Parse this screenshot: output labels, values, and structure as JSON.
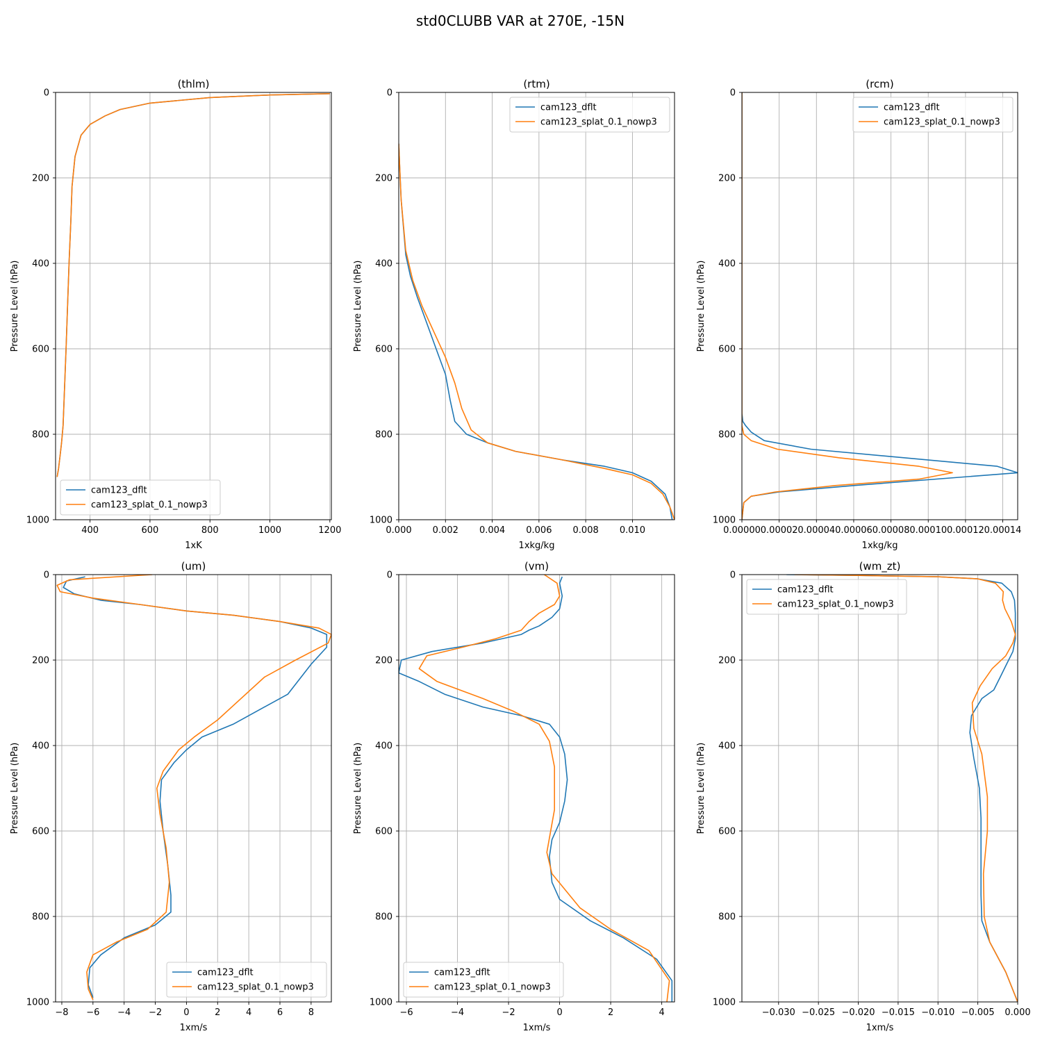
{
  "figure": {
    "title": "std0CLUBB VAR at 270E, -15N",
    "colors": {
      "cam123_dflt": "#1f77b4",
      "cam123_splat_0.1_nowp3": "#ff7f0e"
    }
  },
  "chart_data": [
    {
      "type": "line",
      "title": "(thlm)",
      "xlabel": "1xK",
      "ylabel": "Pressure Level (hPa)",
      "xlim": [
        285,
        1205
      ],
      "ylim": [
        1000,
        0
      ],
      "y_inverted": true,
      "xticks": [
        400,
        600,
        800,
        1000,
        1200
      ],
      "xtick_labels": [
        "400",
        "600",
        "800",
        "1000",
        "1200"
      ],
      "yticks": [
        0,
        200,
        400,
        600,
        800,
        1000
      ],
      "grid": true,
      "legend": "lower left",
      "series": [
        {
          "name": "cam123_dflt",
          "x": [
            1200,
            1000,
            800,
            600,
            500,
            450,
            400,
            370,
            350,
            340,
            336,
            330,
            320,
            310,
            305,
            300,
            295,
            290
          ],
          "y": [
            3,
            6,
            12,
            25,
            40,
            55,
            75,
            100,
            150,
            220,
            300,
            400,
            600,
            780,
            820,
            850,
            880,
            900
          ]
        },
        {
          "name": "cam123_splat_0.1_nowp3",
          "x": [
            1200,
            1000,
            800,
            600,
            500,
            450,
            400,
            370,
            350,
            340,
            336,
            330,
            320,
            310,
            305,
            300,
            295,
            290
          ],
          "y": [
            3,
            6,
            12,
            25,
            40,
            55,
            75,
            100,
            150,
            220,
            300,
            400,
            600,
            780,
            820,
            850,
            880,
            900
          ]
        }
      ]
    },
    {
      "type": "line",
      "title": "(rtm)",
      "xlabel": "1xkg/kg",
      "ylabel": "Pressure Level (hPa)",
      "xlim": [
        0,
        0.0118
      ],
      "ylim": [
        1000,
        0
      ],
      "y_inverted": true,
      "xticks": [
        0,
        0.002,
        0.004,
        0.006,
        0.008,
        0.01
      ],
      "xtick_labels": [
        "0.000",
        "0.002",
        "0.004",
        "0.006",
        "0.008",
        "0.010"
      ],
      "yticks": [
        0,
        200,
        400,
        600,
        800,
        1000
      ],
      "grid": true,
      "legend": "upper right",
      "series": [
        {
          "name": "cam123_dflt",
          "x": [
            0,
            0.0001,
            0.0003,
            0.0005,
            0.0008,
            0.0012,
            0.0016,
            0.002,
            0.0022,
            0.0024,
            0.0029,
            0.0038,
            0.005,
            0.007,
            0.0088,
            0.01,
            0.0108,
            0.0114,
            0.0116,
            0.0117
          ],
          "y": [
            120,
            250,
            380,
            430,
            480,
            540,
            600,
            660,
            720,
            770,
            800,
            820,
            840,
            860,
            875,
            890,
            910,
            940,
            970,
            1000
          ]
        },
        {
          "name": "cam123_splat_0.1_nowp3",
          "x": [
            0,
            0.0001,
            0.0003,
            0.0006,
            0.001,
            0.0015,
            0.002,
            0.0024,
            0.0027,
            0.0031,
            0.0038,
            0.005,
            0.007,
            0.0088,
            0.01,
            0.0108,
            0.0113,
            0.0116,
            0.0118
          ],
          "y": [
            120,
            250,
            370,
            440,
            500,
            560,
            620,
            680,
            740,
            790,
            820,
            840,
            860,
            880,
            895,
            915,
            940,
            970,
            1000
          ]
        }
      ]
    },
    {
      "type": "line",
      "title": "(rcm)",
      "xlabel": "1xkg/kg",
      "ylabel": "Pressure Level (hPa)",
      "xlim": [
        0,
        0.000148
      ],
      "ylim": [
        1000,
        0
      ],
      "y_inverted": true,
      "xticks": [
        0,
        2e-05,
        4e-05,
        6e-05,
        8e-05,
        0.0001,
        0.00012,
        0.00014
      ],
      "xtick_labels": [
        "0.00000",
        "0.00002",
        "0.00004",
        "0.00006",
        "0.00008",
        "0.00010",
        "0.00012",
        "0.00014"
      ],
      "yticks": [
        0,
        200,
        400,
        600,
        800,
        1000
      ],
      "grid": true,
      "legend": "upper right",
      "series": [
        {
          "name": "cam123_dflt",
          "x": [
            0,
            0,
            5e-07,
            2e-06,
            5e-06,
            1.2e-05,
            3.7e-05,
            0.000137,
            0.000148,
            6e-05,
            2e-05,
            5e-06,
            1e-06,
            0
          ],
          "y": [
            0,
            750,
            770,
            780,
            795,
            815,
            835,
            875,
            890,
            920,
            935,
            945,
            960,
            1000
          ]
        },
        {
          "name": "cam123_splat_0.1_nowp3",
          "x": [
            0,
            0,
            1e-06,
            5e-06,
            1.9e-05,
            5.2e-05,
            9.5e-05,
            0.000113,
            9.5e-05,
            5e-05,
            1.8e-05,
            5e-06,
            1e-06,
            0
          ],
          "y": [
            0,
            780,
            800,
            815,
            835,
            855,
            875,
            890,
            905,
            920,
            935,
            945,
            960,
            1000
          ]
        }
      ]
    },
    {
      "type": "line",
      "title": "(um)",
      "xlabel": "1xm/s",
      "ylabel": "Pressure Level (hPa)",
      "xlim": [
        -8.4,
        9.3
      ],
      "ylim": [
        1000,
        0
      ],
      "y_inverted": true,
      "xticks": [
        -8,
        -6,
        -4,
        -2,
        0,
        2,
        4,
        6,
        8
      ],
      "xtick_labels": [
        "−8",
        "−6",
        "−4",
        "−2",
        "0",
        "2",
        "4",
        "6",
        "8"
      ],
      "yticks": [
        0,
        200,
        400,
        600,
        800,
        1000
      ],
      "grid": true,
      "legend": "lower right",
      "series": [
        {
          "name": "cam123_dflt",
          "x": [
            -6.5,
            -7.7,
            -7.9,
            -7.2,
            -5.5,
            -3.0,
            0,
            3.0,
            6.0,
            8.0,
            9.0,
            9.0,
            8.0,
            6.5,
            5.0,
            3.0,
            1.0,
            0,
            -0.8,
            -1.6,
            -1.7,
            -1.5,
            -1.2,
            -1.0,
            -1.0,
            -2.0,
            -4.0,
            -5.5,
            -6.2,
            -6.3,
            -6.0
          ],
          "y": [
            5,
            15,
            30,
            45,
            60,
            70,
            85,
            95,
            110,
            125,
            140,
            170,
            210,
            280,
            310,
            350,
            380,
            410,
            440,
            480,
            530,
            600,
            680,
            750,
            790,
            820,
            850,
            890,
            920,
            960,
            990
          ]
        },
        {
          "name": "cam123_splat_0.1_nowp3",
          "x": [
            -2.2,
            -7.5,
            -8.3,
            -8.1,
            -6.0,
            -3.0,
            0,
            3.0,
            6.0,
            8.5,
            9.3,
            9.1,
            7.0,
            5.0,
            2.0,
            0.5,
            -0.5,
            -1.5,
            -1.9,
            -1.7,
            -1.3,
            -1.1,
            -1.3,
            -2.5,
            -4.5,
            -6.0,
            -6.4,
            -6.3,
            -6.0
          ],
          "y": [
            0,
            12,
            25,
            40,
            55,
            70,
            85,
            95,
            110,
            125,
            140,
            160,
            200,
            240,
            340,
            380,
            410,
            460,
            500,
            560,
            640,
            720,
            790,
            830,
            860,
            890,
            930,
            970,
            995
          ]
        }
      ]
    },
    {
      "type": "line",
      "title": "(vm)",
      "xlabel": "1xm/s",
      "ylabel": "Pressure Level (hPa)",
      "xlim": [
        -6.3,
        4.5
      ],
      "ylim": [
        1000,
        0
      ],
      "y_inverted": true,
      "xticks": [
        -6,
        -4,
        -2,
        0,
        2,
        4
      ],
      "xtick_labels": [
        "−6",
        "−4",
        "−2",
        "0",
        "2",
        "4"
      ],
      "yticks": [
        0,
        200,
        400,
        600,
        800,
        1000
      ],
      "grid": true,
      "legend": "lower left",
      "series": [
        {
          "name": "cam123_dflt",
          "x": [
            0.1,
            0,
            0.1,
            0,
            -0.3,
            -0.8,
            -1.2,
            -1.5,
            -3.0,
            -5.0,
            -6.2,
            -6.3,
            -5.5,
            -4.5,
            -3.0,
            -1.5,
            -0.4,
            0,
            0.2,
            0.3,
            0.2,
            0,
            -0.3,
            -0.4,
            -0.3,
            0,
            1.2,
            2.5,
            3.8,
            4.4,
            4.4
          ],
          "y": [
            5,
            20,
            50,
            80,
            100,
            120,
            130,
            140,
            160,
            180,
            200,
            230,
            250,
            280,
            310,
            330,
            350,
            380,
            420,
            480,
            530,
            580,
            620,
            660,
            720,
            760,
            810,
            850,
            900,
            950,
            1000
          ]
        },
        {
          "name": "cam123_splat_0.1_nowp3",
          "x": [
            -0.6,
            -0.1,
            0,
            -0.2,
            -0.8,
            -1.2,
            -1.5,
            -2.5,
            -3.8,
            -5.2,
            -5.5,
            -4.8,
            -3.0,
            -1.8,
            -0.8,
            -0.4,
            -0.2,
            -0.2,
            -0.5,
            -0.3,
            0.8,
            2.0,
            3.5,
            4.3,
            4.2
          ],
          "y": [
            0,
            20,
            50,
            70,
            90,
            110,
            130,
            150,
            170,
            190,
            220,
            250,
            290,
            320,
            350,
            390,
            450,
            550,
            650,
            700,
            780,
            830,
            880,
            950,
            1000
          ]
        }
      ]
    },
    {
      "type": "line",
      "title": "(wm_zt)",
      "xlabel": "1xm/s",
      "ylabel": "Pressure Level (hPa)",
      "xlim": [
        -0.0346,
        0
      ],
      "ylim": [
        1000,
        0
      ],
      "y_inverted": true,
      "xticks": [
        -0.03,
        -0.025,
        -0.02,
        -0.015,
        -0.01,
        -0.005,
        0
      ],
      "xtick_labels": [
        "−0.030",
        "−0.025",
        "−0.020",
        "−0.015",
        "−0.010",
        "−0.005",
        "0.000"
      ],
      "yticks": [
        0,
        200,
        400,
        600,
        800,
        1000
      ],
      "grid": true,
      "legend": "upper left",
      "series": [
        {
          "name": "cam123_dflt",
          "x": [
            -0.029,
            -0.02,
            -0.01,
            -0.005,
            -0.002,
            -0.0008,
            -0.0004,
            -0.0003,
            -0.0003,
            -0.0006,
            -0.0014,
            -0.0022,
            -0.003,
            -0.0045,
            -0.0058,
            -0.006,
            -0.0055,
            -0.0048,
            -0.0046,
            -0.0046,
            -0.0046,
            -0.0045,
            -0.0035,
            -0.0015,
            0
          ],
          "y": [
            0,
            2,
            5,
            10,
            20,
            40,
            60,
            90,
            150,
            180,
            210,
            240,
            270,
            290,
            330,
            370,
            430,
            500,
            570,
            650,
            750,
            810,
            860,
            930,
            1000
          ]
        },
        {
          "name": "cam123_splat_0.1_nowp3",
          "x": [
            -0.028,
            -0.02,
            -0.01,
            -0.005,
            -0.0028,
            -0.0018,
            -0.0019,
            -0.0016,
            -0.0008,
            -0.0003,
            -0.0006,
            -0.0015,
            -0.0032,
            -0.0047,
            -0.0057,
            -0.0055,
            -0.0045,
            -0.0038,
            -0.0038,
            -0.0043,
            -0.0042,
            -0.0035,
            -0.0015,
            0
          ],
          "y": [
            0,
            2,
            5,
            10,
            20,
            40,
            60,
            80,
            110,
            140,
            160,
            190,
            220,
            260,
            300,
            360,
            420,
            520,
            600,
            700,
            800,
            860,
            930,
            1000
          ]
        }
      ]
    }
  ]
}
